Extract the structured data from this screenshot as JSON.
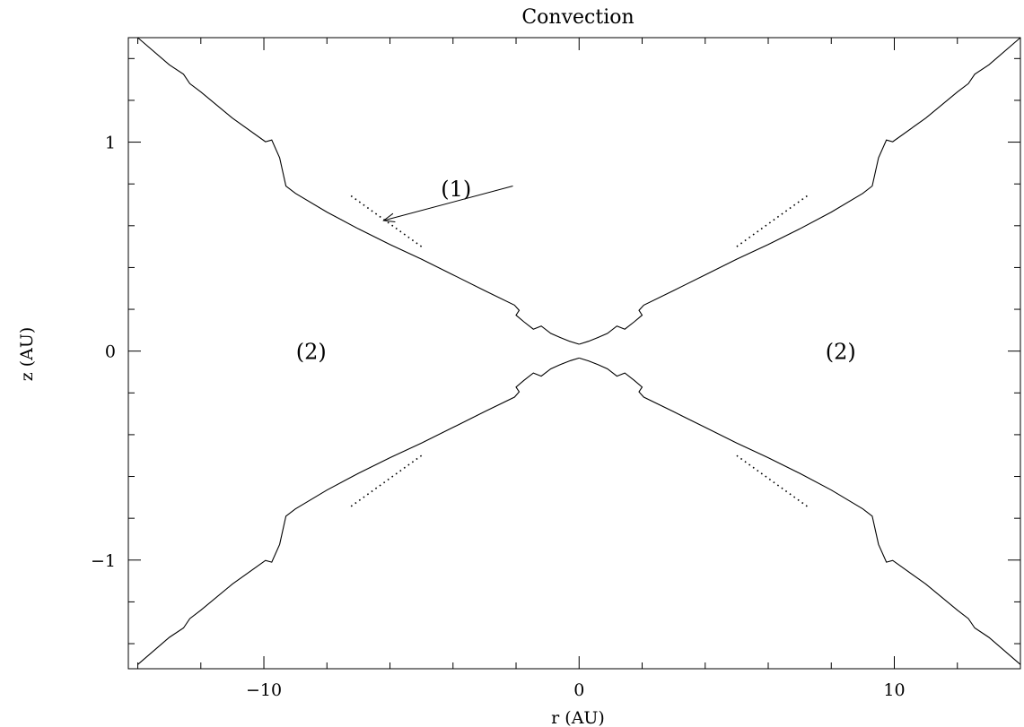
{
  "chart_data": {
    "type": "line",
    "title": "Convection",
    "xlabel": "r (AU)",
    "ylabel": "z (AU)",
    "xlim": [
      -14.3,
      14.0
    ],
    "ylim": [
      -1.52,
      1.5
    ],
    "grid": false,
    "x_ticks": [
      {
        "value": -10,
        "label": "−10"
      },
      {
        "value": 0,
        "label": "0"
      },
      {
        "value": 10,
        "label": "10"
      }
    ],
    "y_ticks": [
      {
        "value": 1,
        "label": "1"
      },
      {
        "value": 0,
        "label": "0"
      },
      {
        "value": -1,
        "label": "−1"
      }
    ],
    "x_minor_step": 2,
    "y_minor_step": 0.2,
    "boundary_right": [
      [
        0.0,
        0.033
      ],
      [
        0.3,
        0.047
      ],
      [
        0.6,
        0.065
      ],
      [
        0.9,
        0.085
      ],
      [
        1.2,
        0.12
      ],
      [
        1.45,
        0.105
      ],
      [
        1.75,
        0.14
      ],
      [
        2.0,
        0.172
      ],
      [
        1.9,
        0.195
      ],
      [
        2.05,
        0.22
      ],
      [
        3.0,
        0.29
      ],
      [
        4.0,
        0.365
      ],
      [
        5.0,
        0.44
      ],
      [
        6.0,
        0.51
      ],
      [
        7.0,
        0.585
      ],
      [
        8.0,
        0.665
      ],
      [
        9.0,
        0.755
      ],
      [
        9.3,
        0.79
      ],
      [
        9.5,
        0.925
      ],
      [
        9.75,
        1.01
      ],
      [
        9.95,
        1.002
      ],
      [
        11.0,
        1.115
      ],
      [
        12.0,
        1.24
      ],
      [
        12.35,
        1.28
      ],
      [
        12.55,
        1.325
      ],
      [
        13.0,
        1.37
      ],
      [
        14.0,
        1.5
      ]
    ],
    "dotted_right": [
      [
        5.0,
        0.5
      ],
      [
        7.3,
        0.75
      ]
    ],
    "annotations": [
      {
        "text": "(1)",
        "x": -3.9,
        "y": 0.78
      },
      {
        "text": "(2)",
        "x": -8.5,
        "y": 0.0
      },
      {
        "text": "(2)",
        "x": 8.3,
        "y": 0.0
      }
    ],
    "arrow": {
      "from": [
        -2.1,
        0.79
      ],
      "to": [
        -6.2,
        0.625
      ]
    }
  }
}
